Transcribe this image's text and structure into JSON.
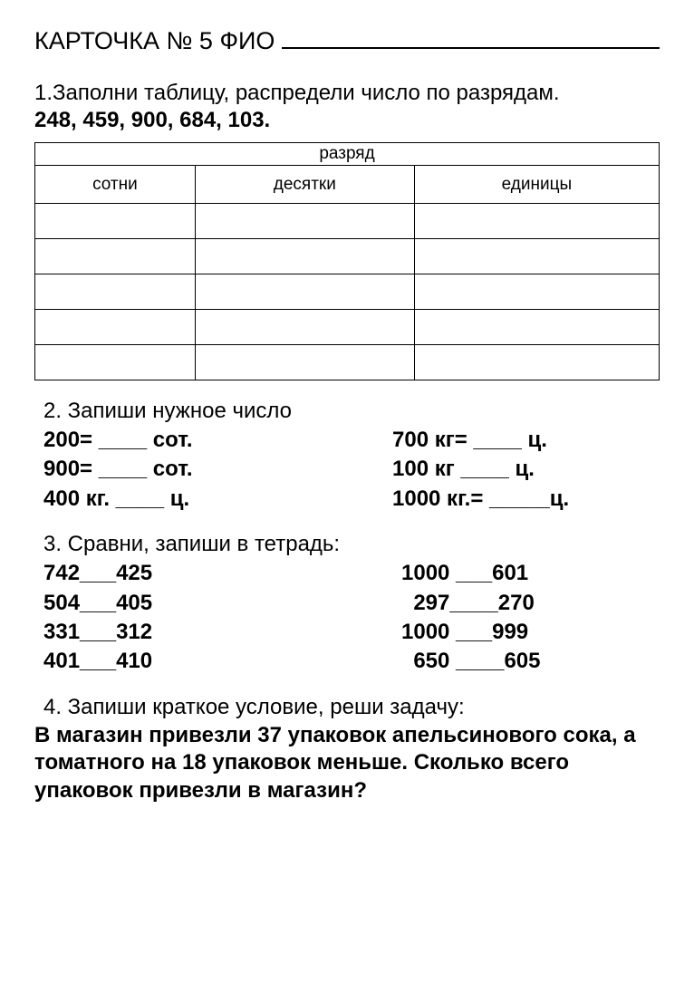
{
  "header": {
    "text": "КАРТОЧКА № 5 ФИО"
  },
  "task1": {
    "intro": "1.Заполни таблицу, распредели число по разрядам.",
    "numbers": "248, 459, 900, 684, 103.",
    "table": {
      "top_header": "разряд",
      "columns": [
        "сотни",
        "десятки",
        "единицы"
      ],
      "row_count": 5
    }
  },
  "task2": {
    "title": "2. Запиши нужное число",
    "left": [
      "200= ____ сот.",
      "900= ____ сот.",
      "400 кг. ____ ц."
    ],
    "right": [
      "700 кг= ____ ц.",
      "100 кг ____ ц.",
      "1000 кг.= _____ц."
    ]
  },
  "task3": {
    "title": "3. Сравни, запиши в тетрадь:",
    "left": [
      "742___425",
      "504___405",
      "331___312",
      "401___410"
    ],
    "right": [
      "1000 ___601",
      "  297____270",
      "1000 ___999",
      "  650 ____605"
    ]
  },
  "task4": {
    "title": "4. Запиши краткое условие, реши задачу:",
    "body": "В магазин привезли 37 упаковок апельсинового сока, а томатного на 18 упаковок меньше. Сколько всего упаковок привезли в магазин?"
  },
  "styles": {
    "page_bg": "#ffffff",
    "text_color": "#000000",
    "border_color": "#000000",
    "font_family": "Arial",
    "base_fontsize_pt": 18
  }
}
